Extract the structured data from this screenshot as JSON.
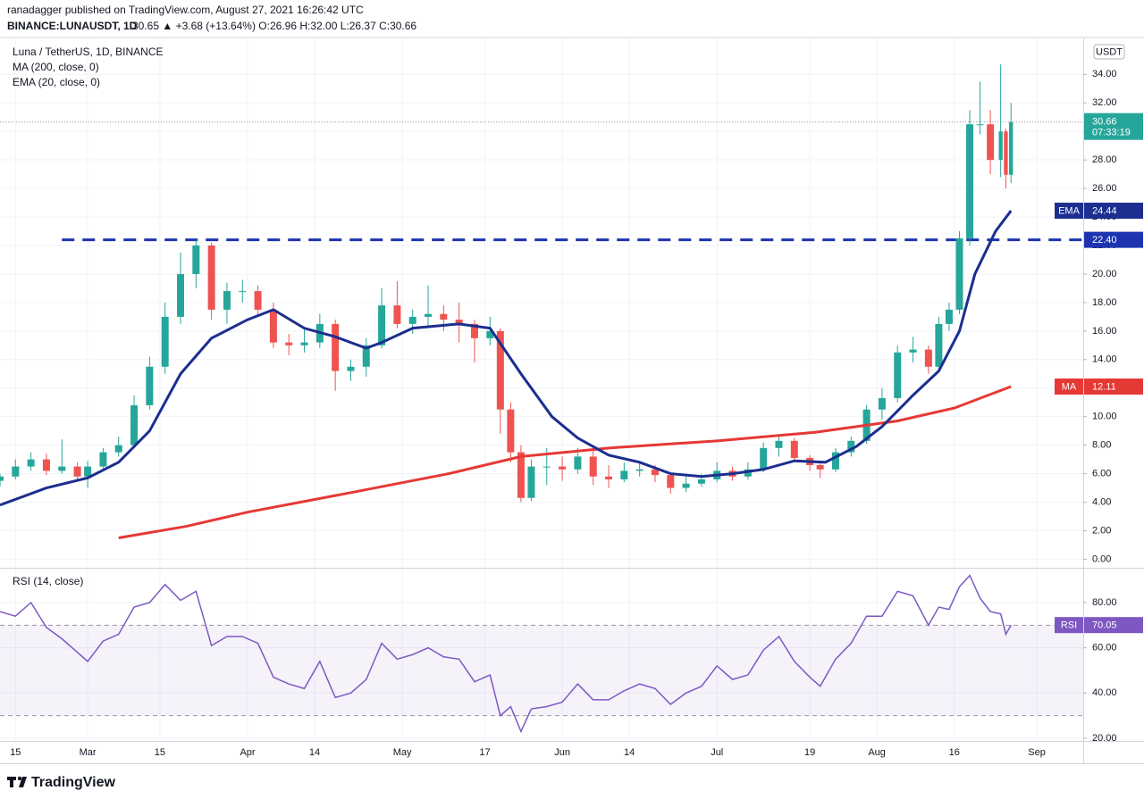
{
  "header": {
    "published": "ranadagger published on TradingView.com, August 27, 2021 16:26:42 UTC",
    "symbol": "BINANCE:LUNAUSDT, 1D",
    "quote": "30.65 ▲ +3.68 (+13.64%) O:26.96 H:32.00 L:26.37 C:30.66"
  },
  "footer": {
    "brand": "TradingView"
  },
  "chart_data": [
    {
      "type": "candlestick",
      "title": "Luna / TetherUS, 1D, BINANCE",
      "y_unit": "USDT",
      "up_color": "#26a69a",
      "down_color": "#ef5350",
      "grid": true,
      "x": [
        "2021-02-12",
        "2021-02-15",
        "2021-02-18",
        "2021-02-21",
        "2021-02-24",
        "2021-02-27",
        "2021-03-01",
        "2021-03-04",
        "2021-03-07",
        "2021-03-10",
        "2021-03-13",
        "2021-03-16",
        "2021-03-19",
        "2021-03-22",
        "2021-03-25",
        "2021-03-28",
        "2021-03-31",
        "2021-04-03",
        "2021-04-06",
        "2021-04-09",
        "2021-04-12",
        "2021-04-15",
        "2021-04-18",
        "2021-04-21",
        "2021-04-24",
        "2021-04-27",
        "2021-04-30",
        "2021-05-03",
        "2021-05-06",
        "2021-05-09",
        "2021-05-12",
        "2021-05-15",
        "2021-05-18",
        "2021-05-20",
        "2021-05-22",
        "2021-05-24",
        "2021-05-26",
        "2021-05-29",
        "2021-06-01",
        "2021-06-04",
        "2021-06-07",
        "2021-06-10",
        "2021-06-13",
        "2021-06-16",
        "2021-06-19",
        "2021-06-22",
        "2021-06-25",
        "2021-06-28",
        "2021-07-01",
        "2021-07-04",
        "2021-07-07",
        "2021-07-10",
        "2021-07-13",
        "2021-07-16",
        "2021-07-19",
        "2021-07-21",
        "2021-07-24",
        "2021-07-27",
        "2021-07-30",
        "2021-08-02",
        "2021-08-05",
        "2021-08-08",
        "2021-08-11",
        "2021-08-13",
        "2021-08-15",
        "2021-08-17",
        "2021-08-19",
        "2021-08-21",
        "2021-08-23",
        "2021-08-25",
        "2021-08-26",
        "2021-08-27"
      ],
      "open": [
        5.5,
        5.8,
        6.5,
        7.0,
        6.2,
        6.5,
        5.8,
        6.5,
        7.5,
        8.0,
        10.8,
        13.5,
        17.0,
        20.0,
        22.0,
        17.5,
        18.8,
        18.8,
        17.5,
        15.2,
        15.0,
        15.2,
        16.5,
        13.2,
        13.5,
        15.0,
        17.8,
        16.5,
        17.0,
        17.2,
        16.8,
        16.5,
        15.5,
        16.0,
        10.5,
        7.5,
        4.3,
        6.5,
        6.5,
        6.3,
        7.2,
        5.8,
        5.6,
        6.2,
        6.3,
        5.9,
        5.0,
        5.3,
        5.6,
        6.2,
        5.8,
        6.3,
        7.8,
        8.3,
        7.1,
        6.6,
        6.3,
        7.5,
        8.3,
        10.5,
        11.3,
        14.5,
        14.7,
        13.5,
        16.5,
        17.5,
        22.5,
        30.5,
        30.5,
        28.0,
        30.0,
        26.96
      ],
      "high": [
        6.0,
        7.0,
        7.5,
        7.4,
        8.4,
        6.8,
        6.9,
        7.8,
        8.6,
        11.5,
        14.2,
        18.0,
        21.5,
        22.4,
        22.2,
        19.4,
        19.6,
        19.2,
        18.0,
        15.8,
        16.2,
        17.2,
        16.8,
        14.0,
        15.5,
        19.0,
        19.5,
        17.5,
        19.2,
        17.8,
        18.0,
        16.8,
        17.0,
        16.2,
        11.0,
        8.0,
        7.0,
        7.8,
        7.2,
        7.8,
        7.6,
        6.6,
        6.8,
        6.9,
        6.6,
        6.1,
        5.8,
        6.0,
        6.8,
        6.5,
        6.8,
        8.2,
        8.7,
        8.5,
        7.3,
        6.9,
        7.8,
        8.6,
        10.8,
        12.0,
        15.0,
        15.6,
        15.0,
        17.0,
        18.0,
        23.0,
        31.5,
        33.5,
        31.5,
        34.7,
        30.2,
        32.0
      ],
      "low": [
        5.1,
        5.6,
        6.2,
        5.9,
        6.0,
        5.5,
        5.0,
        6.3,
        7.2,
        7.8,
        10.5,
        13.0,
        16.5,
        19.0,
        16.8,
        16.5,
        18.0,
        17.0,
        14.8,
        14.3,
        14.5,
        14.8,
        11.8,
        12.5,
        12.8,
        14.8,
        16.2,
        15.8,
        16.2,
        16.0,
        15.2,
        13.8,
        15.0,
        8.8,
        6.8,
        4.0,
        4.1,
        5.2,
        5.5,
        6.0,
        5.2,
        5.0,
        5.4,
        5.8,
        5.4,
        4.6,
        4.7,
        5.1,
        5.4,
        5.5,
        5.6,
        6.1,
        7.2,
        6.8,
        6.2,
        5.7,
        6.1,
        7.2,
        8.1,
        9.8,
        11.0,
        13.8,
        13.0,
        13.2,
        16.0,
        17.2,
        22.0,
        29.8,
        27.0,
        26.8,
        26.0,
        26.37
      ],
      "close": [
        5.8,
        6.5,
        7.0,
        6.2,
        6.5,
        5.8,
        6.5,
        7.5,
        8.0,
        10.8,
        13.5,
        17.0,
        20.0,
        22.0,
        17.5,
        18.8,
        18.8,
        17.5,
        15.2,
        15.0,
        15.2,
        16.5,
        13.2,
        13.5,
        15.0,
        17.8,
        16.5,
        17.0,
        17.2,
        16.8,
        16.5,
        15.5,
        16.0,
        10.5,
        7.5,
        4.3,
        6.5,
        6.5,
        6.3,
        7.2,
        5.8,
        5.6,
        6.2,
        6.3,
        5.9,
        5.0,
        5.3,
        5.6,
        6.2,
        5.8,
        6.3,
        7.8,
        8.3,
        7.1,
        6.6,
        6.3,
        7.5,
        8.3,
        10.5,
        11.3,
        14.5,
        14.7,
        13.5,
        16.5,
        17.5,
        22.5,
        30.5,
        30.5,
        28.0,
        30.0,
        26.96,
        30.66
      ],
      "countdown": "07:33:19",
      "series": [
        {
          "name": "MA (200, close, 0)",
          "tag": "MA",
          "color": "#e53935",
          "x": [
            "2021-03-07",
            "2021-03-20",
            "2021-04-01",
            "2021-04-20",
            "2021-05-10",
            "2021-05-24",
            "2021-06-10",
            "2021-07-01",
            "2021-07-20",
            "2021-08-05",
            "2021-08-16",
            "2021-08-27"
          ],
          "values": [
            1.5,
            2.3,
            3.3,
            4.6,
            6.0,
            7.2,
            7.8,
            8.3,
            8.9,
            9.7,
            10.6,
            12.11
          ]
        },
        {
          "name": "EMA (20, close, 0)",
          "tag": "EMA",
          "color": "#1c2e8f",
          "x": [
            "2021-02-12",
            "2021-02-21",
            "2021-03-01",
            "2021-03-07",
            "2021-03-13",
            "2021-03-19",
            "2021-03-25",
            "2021-04-01",
            "2021-04-06",
            "2021-04-12",
            "2021-04-18",
            "2021-04-24",
            "2021-04-27",
            "2021-05-03",
            "2021-05-12",
            "2021-05-18",
            "2021-05-24",
            "2021-05-30",
            "2021-06-04",
            "2021-06-10",
            "2021-06-16",
            "2021-06-22",
            "2021-06-28",
            "2021-07-04",
            "2021-07-10",
            "2021-07-16",
            "2021-07-22",
            "2021-07-28",
            "2021-08-02",
            "2021-08-08",
            "2021-08-13",
            "2021-08-17",
            "2021-08-20",
            "2021-08-24",
            "2021-08-27"
          ],
          "values": [
            3.8,
            5.0,
            5.7,
            6.8,
            9.0,
            13.0,
            15.5,
            16.8,
            17.5,
            16.2,
            15.6,
            14.8,
            15.2,
            16.2,
            16.5,
            16.2,
            13.0,
            10.0,
            8.5,
            7.3,
            6.8,
            6.0,
            5.8,
            6.0,
            6.3,
            6.9,
            6.8,
            7.9,
            9.3,
            11.5,
            13.2,
            16.0,
            20.0,
            23.0,
            24.44
          ]
        }
      ],
      "hline": {
        "value": 22.4,
        "label": "22.40",
        "start": "2021-02-24",
        "color": "#1c34b0"
      },
      "xlim": [
        "2021-02-12",
        "2021-09-10"
      ],
      "xticks": [
        {
          "value": "2021-02-15",
          "label": "15"
        },
        {
          "value": "2021-03-01",
          "label": "Mar"
        },
        {
          "value": "2021-03-15",
          "label": "15"
        },
        {
          "value": "2021-04-01",
          "label": "Apr"
        },
        {
          "value": "2021-04-14",
          "label": "14"
        },
        {
          "value": "2021-05-01",
          "label": "May"
        },
        {
          "value": "2021-05-17",
          "label": "17"
        },
        {
          "value": "2021-06-01",
          "label": "Jun"
        },
        {
          "value": "2021-06-14",
          "label": "14"
        },
        {
          "value": "2021-07-01",
          "label": "Jul"
        },
        {
          "value": "2021-07-19",
          "label": "19"
        },
        {
          "value": "2021-08-01",
          "label": "Aug"
        },
        {
          "value": "2021-08-16",
          "label": "16"
        },
        {
          "value": "2021-09-01",
          "label": "Sep"
        }
      ],
      "ylim": [
        -0.6,
        36.4
      ],
      "yticks": [
        {
          "value": 0,
          "label": "0.00"
        },
        {
          "value": 2,
          "label": "2.00"
        },
        {
          "value": 4,
          "label": "4.00"
        },
        {
          "value": 6,
          "label": "6.00"
        },
        {
          "value": 8,
          "label": "8.00"
        },
        {
          "value": 10,
          "label": "10.00"
        },
        {
          "value": 12,
          "label": "12.00"
        },
        {
          "value": 14,
          "label": "14.00"
        },
        {
          "value": 16,
          "label": "16.00"
        },
        {
          "value": 18,
          "label": "18.00"
        },
        {
          "value": 20,
          "label": "20.00"
        },
        {
          "value": 22,
          "label": "22.00"
        },
        {
          "value": 24,
          "label": "24.00"
        },
        {
          "value": 26,
          "label": "26.00"
        },
        {
          "value": 28,
          "label": "28.00"
        },
        {
          "value": 30,
          "label": "30.00"
        },
        {
          "value": 32,
          "label": "32.00"
        },
        {
          "value": 34,
          "label": "34.00"
        }
      ]
    },
    {
      "type": "line",
      "title": "RSI (14, close)",
      "grid": true,
      "series": [
        {
          "tag": "RSI",
          "color": "#7e57c2",
          "values": [
            76,
            74,
            80,
            69,
            64,
            58,
            54,
            63,
            66,
            78,
            80,
            88,
            81,
            85,
            61,
            65,
            65,
            62,
            47,
            44,
            42,
            54,
            38,
            40,
            46,
            62,
            55,
            57,
            60,
            56,
            55,
            45,
            48,
            30,
            34,
            23,
            33,
            34,
            36,
            44,
            37,
            37,
            41,
            44,
            42,
            35,
            40,
            43,
            52,
            46,
            48,
            59,
            65,
            54,
            47,
            43,
            55,
            62,
            74,
            74,
            85,
            83,
            70,
            78,
            77,
            87,
            92,
            82,
            76,
            75,
            66,
            70.05
          ]
        }
      ],
      "bands": [
        30,
        70
      ],
      "band_color": "#7e57c2",
      "ylim": [
        18.8,
        95
      ],
      "yticks": [
        {
          "value": 20,
          "label": "20.00"
        },
        {
          "value": 40,
          "label": "40.00"
        },
        {
          "value": 60,
          "label": "60.00"
        },
        {
          "value": 80,
          "label": "80.00"
        }
      ]
    }
  ]
}
